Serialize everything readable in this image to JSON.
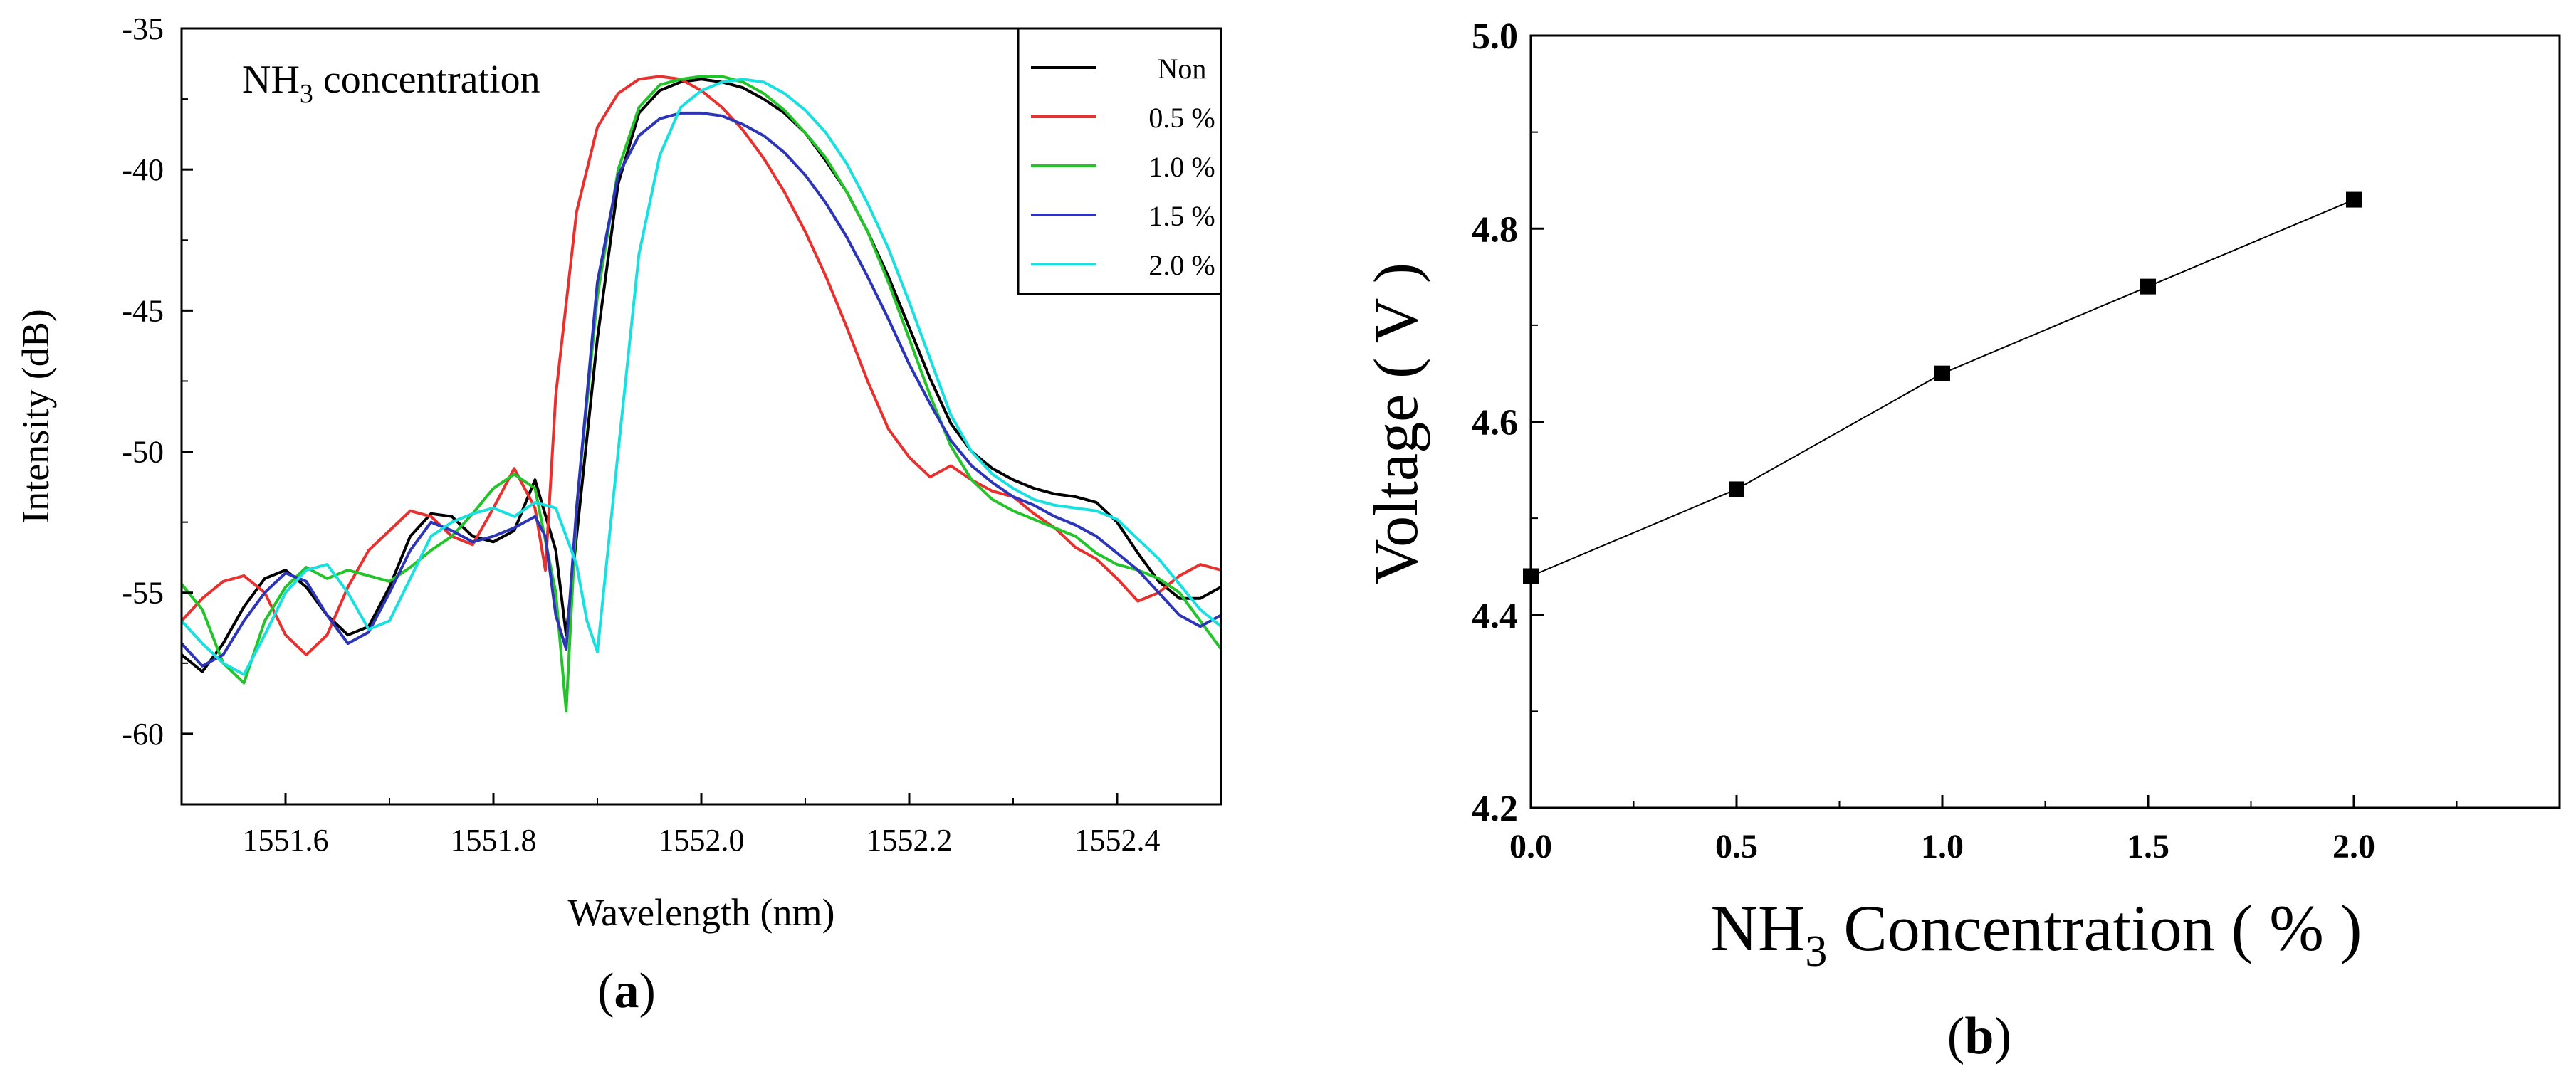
{
  "chart_data": [
    {
      "type": "line",
      "panel_label": "a",
      "title": "",
      "annotation": {
        "base": "NH",
        "sub": "3",
        "rest": " concentration"
      },
      "xlabel": "Wavelength (nm)",
      "ylabel": "Intensity (dB)",
      "xlim": [
        1551.5,
        1552.5
      ],
      "ylim": [
        -62.5,
        -35
      ],
      "xticks": [
        1551.6,
        1551.8,
        1552.0,
        1552.2,
        1552.4
      ],
      "xtick_labels": [
        "1551.6",
        "1551.8",
        "1552.0",
        "1552.2",
        "1552.4"
      ],
      "yticks": [
        -35,
        -40,
        -45,
        -50,
        -55,
        -60
      ],
      "ytick_labels": [
        "-35",
        "-40",
        "-45",
        "-50",
        "-55",
        "-60"
      ],
      "legend_position": "top-right",
      "series": [
        {
          "name": "Non",
          "color": "#000000",
          "x": [
            1551.5,
            1551.52,
            1551.54,
            1551.56,
            1551.58,
            1551.6,
            1551.62,
            1551.64,
            1551.66,
            1551.68,
            1551.7,
            1551.72,
            1551.74,
            1551.76,
            1551.78,
            1551.8,
            1551.82,
            1551.84,
            1551.86,
            1551.87,
            1551.88,
            1551.9,
            1551.92,
            1551.94,
            1551.96,
            1551.98,
            1552.0,
            1552.02,
            1552.04,
            1552.06,
            1552.08,
            1552.1,
            1552.12,
            1552.14,
            1552.16,
            1552.18,
            1552.2,
            1552.22,
            1552.24,
            1552.26,
            1552.28,
            1552.3,
            1552.32,
            1552.34,
            1552.36,
            1552.38,
            1552.4,
            1552.42,
            1552.44,
            1552.46,
            1552.48,
            1552.5
          ],
          "y": [
            -57.2,
            -57.8,
            -56.8,
            -55.5,
            -54.5,
            -54.2,
            -54.8,
            -55.8,
            -56.5,
            -56.2,
            -54.8,
            -53.0,
            -52.2,
            -52.3,
            -53.0,
            -53.2,
            -52.8,
            -51.0,
            -53.5,
            -56.5,
            -53.0,
            -46.0,
            -40.5,
            -38.0,
            -37.2,
            -36.9,
            -36.8,
            -36.9,
            -37.1,
            -37.5,
            -38.0,
            -38.7,
            -39.7,
            -40.8,
            -42.2,
            -43.8,
            -45.6,
            -47.4,
            -49.0,
            -50.0,
            -50.6,
            -51.0,
            -51.3,
            -51.5,
            -51.6,
            -51.8,
            -52.5,
            -53.6,
            -54.6,
            -55.2,
            -55.2,
            -54.8
          ]
        },
        {
          "name": "0.5 %",
          "color": "#e8312f",
          "x": [
            1551.5,
            1551.52,
            1551.54,
            1551.56,
            1551.58,
            1551.6,
            1551.62,
            1551.64,
            1551.66,
            1551.68,
            1551.7,
            1551.72,
            1551.74,
            1551.76,
            1551.78,
            1551.8,
            1551.82,
            1551.84,
            1551.85,
            1551.86,
            1551.88,
            1551.9,
            1551.92,
            1551.94,
            1551.96,
            1551.98,
            1552.0,
            1552.02,
            1552.04,
            1552.06,
            1552.08,
            1552.1,
            1552.12,
            1552.14,
            1552.16,
            1552.18,
            1552.2,
            1552.22,
            1552.24,
            1552.26,
            1552.28,
            1552.3,
            1552.32,
            1552.34,
            1552.36,
            1552.38,
            1552.4,
            1552.42,
            1552.44,
            1552.46,
            1552.48,
            1552.5
          ],
          "y": [
            -56.0,
            -55.2,
            -54.6,
            -54.4,
            -55.0,
            -56.5,
            -57.2,
            -56.5,
            -54.8,
            -53.5,
            -52.8,
            -52.1,
            -52.3,
            -53.0,
            -53.3,
            -52.0,
            -50.6,
            -52.0,
            -54.2,
            -48.0,
            -41.5,
            -38.5,
            -37.3,
            -36.8,
            -36.7,
            -36.8,
            -37.2,
            -37.8,
            -38.6,
            -39.6,
            -40.8,
            -42.2,
            -43.8,
            -45.6,
            -47.5,
            -49.2,
            -50.2,
            -50.9,
            -50.5,
            -51.0,
            -51.4,
            -51.6,
            -52.2,
            -52.7,
            -53.4,
            -53.8,
            -54.5,
            -55.3,
            -55.0,
            -54.4,
            -54.0,
            -54.2
          ]
        },
        {
          "name": "1.0 %",
          "color": "#22c42a",
          "x": [
            1551.5,
            1551.52,
            1551.54,
            1551.56,
            1551.58,
            1551.6,
            1551.62,
            1551.64,
            1551.66,
            1551.68,
            1551.7,
            1551.72,
            1551.74,
            1551.76,
            1551.78,
            1551.8,
            1551.82,
            1551.84,
            1551.86,
            1551.87,
            1551.88,
            1551.9,
            1551.92,
            1551.94,
            1551.96,
            1551.98,
            1552.0,
            1552.02,
            1552.04,
            1552.06,
            1552.08,
            1552.1,
            1552.12,
            1552.14,
            1552.16,
            1552.18,
            1552.2,
            1552.22,
            1552.24,
            1552.26,
            1552.28,
            1552.3,
            1552.32,
            1552.34,
            1552.36,
            1552.38,
            1552.4,
            1552.42,
            1552.44,
            1552.46,
            1552.48,
            1552.5
          ],
          "y": [
            -54.7,
            -55.6,
            -57.5,
            -58.2,
            -56.0,
            -54.8,
            -54.1,
            -54.5,
            -54.2,
            -54.4,
            -54.6,
            -54.1,
            -53.5,
            -53.0,
            -52.2,
            -51.3,
            -50.8,
            -51.3,
            -55.0,
            -59.2,
            -52.0,
            -44.5,
            -40.0,
            -37.8,
            -37.0,
            -36.8,
            -36.7,
            -36.7,
            -36.9,
            -37.3,
            -37.9,
            -38.7,
            -39.6,
            -40.8,
            -42.2,
            -44.0,
            -46.0,
            -48.0,
            -49.8,
            -51.0,
            -51.7,
            -52.1,
            -52.4,
            -52.7,
            -53.0,
            -53.6,
            -54.0,
            -54.2,
            -54.5,
            -55.0,
            -56.0,
            -57.0
          ]
        },
        {
          "name": "1.5 %",
          "color": "#2c35b8",
          "x": [
            1551.5,
            1551.52,
            1551.54,
            1551.56,
            1551.58,
            1551.6,
            1551.62,
            1551.64,
            1551.66,
            1551.68,
            1551.7,
            1551.72,
            1551.74,
            1551.76,
            1551.78,
            1551.8,
            1551.82,
            1551.84,
            1551.85,
            1551.86,
            1551.87,
            1551.88,
            1551.9,
            1551.92,
            1551.94,
            1551.96,
            1551.98,
            1552.0,
            1552.02,
            1552.04,
            1552.06,
            1552.08,
            1552.1,
            1552.12,
            1552.14,
            1552.16,
            1552.18,
            1552.2,
            1552.22,
            1552.24,
            1552.26,
            1552.28,
            1552.3,
            1552.32,
            1552.34,
            1552.36,
            1552.38,
            1552.4,
            1552.42,
            1552.44,
            1552.46,
            1552.48,
            1552.5
          ],
          "y": [
            -56.8,
            -57.6,
            -57.2,
            -56.0,
            -55.0,
            -54.3,
            -54.6,
            -55.8,
            -56.8,
            -56.4,
            -55.0,
            -53.5,
            -52.5,
            -52.8,
            -53.2,
            -53.0,
            -52.7,
            -52.3,
            -53.0,
            -55.8,
            -57.0,
            -52.0,
            -44.0,
            -40.2,
            -38.8,
            -38.2,
            -38.0,
            -38.0,
            -38.1,
            -38.4,
            -38.8,
            -39.4,
            -40.2,
            -41.2,
            -42.4,
            -43.8,
            -45.3,
            -46.9,
            -48.3,
            -49.6,
            -50.5,
            -51.1,
            -51.6,
            -51.9,
            -52.3,
            -52.6,
            -53.0,
            -53.6,
            -54.2,
            -55.0,
            -55.8,
            -56.2,
            -55.8
          ]
        },
        {
          "name": "2.0 %",
          "color": "#19e0e0",
          "x": [
            1551.5,
            1551.52,
            1551.54,
            1551.56,
            1551.58,
            1551.6,
            1551.62,
            1551.64,
            1551.66,
            1551.68,
            1551.7,
            1551.72,
            1551.74,
            1551.76,
            1551.78,
            1551.8,
            1551.82,
            1551.84,
            1551.86,
            1551.88,
            1551.89,
            1551.9,
            1551.92,
            1551.94,
            1551.96,
            1551.98,
            1552.0,
            1552.02,
            1552.04,
            1552.06,
            1552.08,
            1552.1,
            1552.12,
            1552.14,
            1552.16,
            1552.18,
            1552.2,
            1552.22,
            1552.24,
            1552.26,
            1552.28,
            1552.3,
            1552.32,
            1552.34,
            1552.36,
            1552.38,
            1552.4,
            1552.42,
            1552.44,
            1552.46,
            1552.48,
            1552.5
          ],
          "y": [
            -56.0,
            -56.8,
            -57.5,
            -57.9,
            -56.5,
            -55.0,
            -54.2,
            -54.0,
            -55.0,
            -56.3,
            -56.0,
            -54.5,
            -53.0,
            -52.5,
            -52.2,
            -52.0,
            -52.3,
            -51.8,
            -52.0,
            -54.0,
            -56.0,
            -57.1,
            -50.0,
            -43.0,
            -39.5,
            -37.8,
            -37.2,
            -36.9,
            -36.8,
            -36.9,
            -37.3,
            -37.9,
            -38.7,
            -39.8,
            -41.2,
            -42.8,
            -44.7,
            -46.7,
            -48.7,
            -50.0,
            -50.8,
            -51.3,
            -51.7,
            -51.9,
            -52.0,
            -52.1,
            -52.4,
            -53.1,
            -53.8,
            -54.7,
            -55.6,
            -56.2
          ]
        }
      ]
    },
    {
      "type": "line",
      "panel_label": "b",
      "title": "",
      "xlabel": {
        "base": "NH",
        "sub": "3",
        "rest": " Concentration ( % )"
      },
      "ylabel": "Voltage ( V )",
      "xlim": [
        0.0,
        2.5
      ],
      "ylim": [
        4.2,
        5.0
      ],
      "xticks": [
        0.0,
        0.5,
        1.0,
        1.5,
        2.0
      ],
      "xtick_labels": [
        "0.0",
        "0.5",
        "1.0",
        "1.5",
        "2.0"
      ],
      "yticks": [
        4.2,
        4.4,
        4.6,
        4.8,
        5.0
      ],
      "ytick_labels": [
        "4.2",
        "4.4",
        "4.6",
        "4.8",
        "5.0"
      ],
      "marker": "square",
      "series": [
        {
          "name": "Voltage",
          "color": "#000000",
          "x": [
            0.0,
            0.5,
            1.0,
            1.5,
            2.0
          ],
          "y": [
            4.44,
            4.53,
            4.65,
            4.74,
            4.83
          ]
        }
      ]
    }
  ]
}
